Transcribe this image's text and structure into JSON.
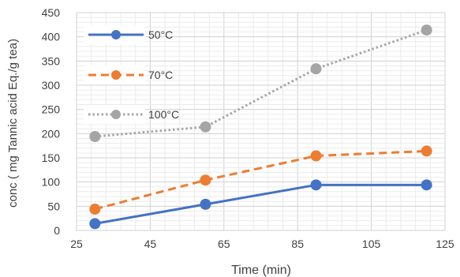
{
  "chart_data": {
    "type": "scatter",
    "title": "",
    "xlabel": "Time (min)",
    "ylabel": "conc ( mg Tannic acid Eq./g tea)",
    "xlim": [
      25,
      125
    ],
    "ylim": [
      0,
      450
    ],
    "x_ticks": [
      25,
      45,
      65,
      85,
      105,
      125
    ],
    "y_ticks": [
      0,
      50,
      100,
      150,
      200,
      250,
      300,
      350,
      400,
      450
    ],
    "grid": "major and minor",
    "legend_position": "top-left",
    "series": [
      {
        "name": "50°C",
        "x": [
          30,
          60,
          90,
          120
        ],
        "y": [
          14,
          54,
          94,
          94
        ],
        "color": "#4472C4",
        "line": "solid"
      },
      {
        "name": "70°C",
        "x": [
          30,
          60,
          90,
          120
        ],
        "y": [
          44,
          104,
          154,
          164
        ],
        "color": "#ED7D31",
        "line": "dashed"
      },
      {
        "name": "100°C",
        "x": [
          30,
          60,
          90,
          120
        ],
        "y": [
          194,
          214,
          334,
          414
        ],
        "color": "#A5A5A5",
        "line": "dotted"
      }
    ]
  }
}
